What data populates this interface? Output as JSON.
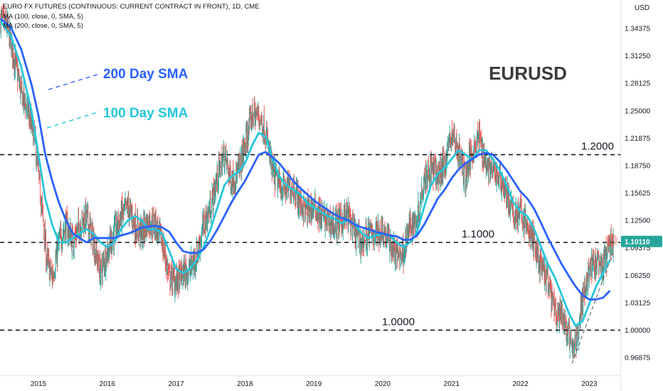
{
  "header": {
    "title": "EURO FX FUTURES (CONTINUOUS: CURRENT CONTRACT IN FRONT), 1D, CME",
    "indicator_1": "MA (100, close, 0, SMA, 5)",
    "indicator_2": "MA (200, close, 0, SMA, 5)"
  },
  "chart_data": {
    "type": "line",
    "title": "EURUSD",
    "currency_label": "USD",
    "x_ticks": [
      "2015",
      "2016",
      "2017",
      "2018",
      "2019",
      "2020",
      "2021",
      "2022",
      "2023"
    ],
    "y_ticks": [
      "1.34375",
      "1.31250",
      "1.28125",
      "1.25000",
      "1.21875",
      "1.18750",
      "1.15625",
      "1.12500",
      "1.09375",
      "1.06250",
      "1.03125",
      "1.00000",
      "0.96875"
    ],
    "ylim": [
      0.955,
      1.36
    ],
    "last_price": "1.10110",
    "colors": {
      "price_up": "#26a69a",
      "price_down": "#ef5350",
      "sma100": "#26c6da",
      "sma200": "#2962ff",
      "text": "#131722",
      "axis_text": "#131722"
    },
    "horizontal_levels": [
      {
        "value": 1.2,
        "label": "1.2000"
      },
      {
        "value": 1.1,
        "label": "1.1000"
      },
      {
        "value": 1.0,
        "label": "1.0000"
      }
    ],
    "annotations": [
      {
        "text": "200 Day SMA",
        "color": "#2962ff"
      },
      {
        "text": "100 Day SMA",
        "color": "#26c6da"
      }
    ],
    "price_path": [
      [
        2014.45,
        1.355
      ],
      [
        2014.55,
        1.345
      ],
      [
        2014.65,
        1.31
      ],
      [
        2014.75,
        1.27
      ],
      [
        2014.85,
        1.25
      ],
      [
        2014.95,
        1.215
      ],
      [
        2015.05,
        1.14
      ],
      [
        2015.12,
        1.08
      ],
      [
        2015.2,
        1.06
      ],
      [
        2015.3,
        1.1
      ],
      [
        2015.4,
        1.12
      ],
      [
        2015.5,
        1.1
      ],
      [
        2015.6,
        1.12
      ],
      [
        2015.7,
        1.13
      ],
      [
        2015.8,
        1.1
      ],
      [
        2015.9,
        1.065
      ],
      [
        2016.0,
        1.09
      ],
      [
        2016.1,
        1.11
      ],
      [
        2016.2,
        1.13
      ],
      [
        2016.3,
        1.14
      ],
      [
        2016.4,
        1.12
      ],
      [
        2016.5,
        1.11
      ],
      [
        2016.6,
        1.125
      ],
      [
        2016.7,
        1.12
      ],
      [
        2016.8,
        1.1
      ],
      [
        2016.9,
        1.06
      ],
      [
        2017.0,
        1.055
      ],
      [
        2017.1,
        1.065
      ],
      [
        2017.2,
        1.07
      ],
      [
        2017.3,
        1.085
      ],
      [
        2017.4,
        1.12
      ],
      [
        2017.5,
        1.14
      ],
      [
        2017.6,
        1.175
      ],
      [
        2017.7,
        1.2
      ],
      [
        2017.8,
        1.17
      ],
      [
        2017.9,
        1.18
      ],
      [
        2018.0,
        1.21
      ],
      [
        2018.1,
        1.245
      ],
      [
        2018.2,
        1.245
      ],
      [
        2018.3,
        1.225
      ],
      [
        2018.4,
        1.18
      ],
      [
        2018.5,
        1.165
      ],
      [
        2018.6,
        1.16
      ],
      [
        2018.7,
        1.165
      ],
      [
        2018.8,
        1.145
      ],
      [
        2018.9,
        1.135
      ],
      [
        2019.0,
        1.14
      ],
      [
        2019.1,
        1.13
      ],
      [
        2019.2,
        1.125
      ],
      [
        2019.3,
        1.12
      ],
      [
        2019.4,
        1.125
      ],
      [
        2019.5,
        1.13
      ],
      [
        2019.6,
        1.11
      ],
      [
        2019.7,
        1.1
      ],
      [
        2019.8,
        1.11
      ],
      [
        2019.9,
        1.11
      ],
      [
        2020.0,
        1.115
      ],
      [
        2020.1,
        1.1
      ],
      [
        2020.2,
        1.085
      ],
      [
        2020.3,
        1.09
      ],
      [
        2020.4,
        1.12
      ],
      [
        2020.5,
        1.125
      ],
      [
        2020.6,
        1.175
      ],
      [
        2020.7,
        1.185
      ],
      [
        2020.8,
        1.175
      ],
      [
        2020.9,
        1.19
      ],
      [
        2021.0,
        1.225
      ],
      [
        2021.1,
        1.205
      ],
      [
        2021.2,
        1.175
      ],
      [
        2021.3,
        1.205
      ],
      [
        2021.4,
        1.22
      ],
      [
        2021.5,
        1.19
      ],
      [
        2021.6,
        1.18
      ],
      [
        2021.7,
        1.175
      ],
      [
        2021.8,
        1.155
      ],
      [
        2021.9,
        1.13
      ],
      [
        2022.0,
        1.135
      ],
      [
        2022.1,
        1.115
      ],
      [
        2022.2,
        1.1
      ],
      [
        2022.3,
        1.07
      ],
      [
        2022.4,
        1.055
      ],
      [
        2022.5,
        1.02
      ],
      [
        2022.6,
        1.015
      ],
      [
        2022.7,
        0.995
      ],
      [
        2022.75,
        0.975
      ],
      [
        2022.8,
        0.985
      ],
      [
        2022.9,
        1.035
      ],
      [
        2023.0,
        1.07
      ],
      [
        2023.1,
        1.075
      ],
      [
        2023.2,
        1.07
      ],
      [
        2023.3,
        1.1
      ],
      [
        2023.35,
        1.101
      ]
    ],
    "sma100_path": [
      [
        2014.45,
        1.352
      ],
      [
        2014.6,
        1.335
      ],
      [
        2014.75,
        1.3
      ],
      [
        2014.9,
        1.25
      ],
      [
        2015.0,
        1.2
      ],
      [
        2015.1,
        1.15
      ],
      [
        2015.2,
        1.12
      ],
      [
        2015.3,
        1.1
      ],
      [
        2015.4,
        1.1
      ],
      [
        2015.5,
        1.105
      ],
      [
        2015.6,
        1.11
      ],
      [
        2015.7,
        1.115
      ],
      [
        2015.8,
        1.11
      ],
      [
        2015.9,
        1.1
      ],
      [
        2016.0,
        1.095
      ],
      [
        2016.1,
        1.1
      ],
      [
        2016.2,
        1.115
      ],
      [
        2016.3,
        1.125
      ],
      [
        2016.4,
        1.13
      ],
      [
        2016.5,
        1.125
      ],
      [
        2016.6,
        1.115
      ],
      [
        2016.7,
        1.115
      ],
      [
        2016.8,
        1.11
      ],
      [
        2016.9,
        1.09
      ],
      [
        2017.0,
        1.07
      ],
      [
        2017.1,
        1.065
      ],
      [
        2017.2,
        1.07
      ],
      [
        2017.3,
        1.08
      ],
      [
        2017.4,
        1.095
      ],
      [
        2017.5,
        1.115
      ],
      [
        2017.6,
        1.14
      ],
      [
        2017.7,
        1.165
      ],
      [
        2017.8,
        1.175
      ],
      [
        2017.9,
        1.18
      ],
      [
        2018.0,
        1.19
      ],
      [
        2018.1,
        1.21
      ],
      [
        2018.2,
        1.225
      ],
      [
        2018.3,
        1.22
      ],
      [
        2018.4,
        1.195
      ],
      [
        2018.5,
        1.175
      ],
      [
        2018.6,
        1.165
      ],
      [
        2018.7,
        1.16
      ],
      [
        2018.8,
        1.155
      ],
      [
        2018.9,
        1.145
      ],
      [
        2019.0,
        1.14
      ],
      [
        2019.1,
        1.135
      ],
      [
        2019.2,
        1.13
      ],
      [
        2019.3,
        1.127
      ],
      [
        2019.4,
        1.122
      ],
      [
        2019.5,
        1.125
      ],
      [
        2019.6,
        1.12
      ],
      [
        2019.7,
        1.11
      ],
      [
        2019.8,
        1.105
      ],
      [
        2019.9,
        1.108
      ],
      [
        2020.0,
        1.11
      ],
      [
        2020.1,
        1.108
      ],
      [
        2020.2,
        1.1
      ],
      [
        2020.3,
        1.095
      ],
      [
        2020.4,
        1.1
      ],
      [
        2020.5,
        1.112
      ],
      [
        2020.6,
        1.14
      ],
      [
        2020.7,
        1.165
      ],
      [
        2020.8,
        1.178
      ],
      [
        2020.9,
        1.185
      ],
      [
        2021.0,
        1.195
      ],
      [
        2021.1,
        1.205
      ],
      [
        2021.2,
        1.2
      ],
      [
        2021.3,
        1.195
      ],
      [
        2021.4,
        1.205
      ],
      [
        2021.5,
        1.205
      ],
      [
        2021.6,
        1.195
      ],
      [
        2021.7,
        1.182
      ],
      [
        2021.8,
        1.165
      ],
      [
        2021.9,
        1.145
      ],
      [
        2022.0,
        1.135
      ],
      [
        2022.1,
        1.13
      ],
      [
        2022.2,
        1.115
      ],
      [
        2022.3,
        1.095
      ],
      [
        2022.4,
        1.075
      ],
      [
        2022.5,
        1.06
      ],
      [
        2022.6,
        1.04
      ],
      [
        2022.7,
        1.02
      ],
      [
        2022.8,
        1.005
      ],
      [
        2022.9,
        1.01
      ],
      [
        2023.0,
        1.03
      ],
      [
        2023.1,
        1.05
      ],
      [
        2023.2,
        1.065
      ],
      [
        2023.3,
        1.08
      ]
    ],
    "sma200_path": [
      [
        2014.45,
        1.355
      ],
      [
        2014.6,
        1.345
      ],
      [
        2014.75,
        1.32
      ],
      [
        2014.9,
        1.28
      ],
      [
        2015.0,
        1.245
      ],
      [
        2015.1,
        1.2
      ],
      [
        2015.2,
        1.17
      ],
      [
        2015.3,
        1.145
      ],
      [
        2015.4,
        1.125
      ],
      [
        2015.5,
        1.11
      ],
      [
        2015.6,
        1.105
      ],
      [
        2015.7,
        1.1
      ],
      [
        2015.8,
        1.105
      ],
      [
        2015.9,
        1.105
      ],
      [
        2016.0,
        1.105
      ],
      [
        2016.1,
        1.105
      ],
      [
        2016.2,
        1.108
      ],
      [
        2016.3,
        1.11
      ],
      [
        2016.4,
        1.113
      ],
      [
        2016.5,
        1.117
      ],
      [
        2016.6,
        1.118
      ],
      [
        2016.7,
        1.119
      ],
      [
        2016.8,
        1.117
      ],
      [
        2016.9,
        1.112
      ],
      [
        2017.0,
        1.1
      ],
      [
        2017.1,
        1.09
      ],
      [
        2017.2,
        1.088
      ],
      [
        2017.3,
        1.088
      ],
      [
        2017.4,
        1.092
      ],
      [
        2017.5,
        1.102
      ],
      [
        2017.6,
        1.115
      ],
      [
        2017.7,
        1.13
      ],
      [
        2017.8,
        1.145
      ],
      [
        2017.9,
        1.158
      ],
      [
        2018.0,
        1.17
      ],
      [
        2018.1,
        1.185
      ],
      [
        2018.2,
        1.2
      ],
      [
        2018.3,
        1.203
      ],
      [
        2018.4,
        1.197
      ],
      [
        2018.5,
        1.19
      ],
      [
        2018.6,
        1.18
      ],
      [
        2018.7,
        1.17
      ],
      [
        2018.8,
        1.162
      ],
      [
        2018.9,
        1.155
      ],
      [
        2019.0,
        1.148
      ],
      [
        2019.1,
        1.142
      ],
      [
        2019.2,
        1.137
      ],
      [
        2019.3,
        1.132
      ],
      [
        2019.4,
        1.128
      ],
      [
        2019.5,
        1.125
      ],
      [
        2019.6,
        1.12
      ],
      [
        2019.7,
        1.117
      ],
      [
        2019.8,
        1.115
      ],
      [
        2019.9,
        1.112
      ],
      [
        2020.0,
        1.11
      ],
      [
        2020.1,
        1.108
      ],
      [
        2020.2,
        1.107
      ],
      [
        2020.3,
        1.103
      ],
      [
        2020.4,
        1.103
      ],
      [
        2020.5,
        1.108
      ],
      [
        2020.6,
        1.12
      ],
      [
        2020.7,
        1.135
      ],
      [
        2020.8,
        1.15
      ],
      [
        2020.9,
        1.16
      ],
      [
        2021.0,
        1.173
      ],
      [
        2021.1,
        1.183
      ],
      [
        2021.2,
        1.19
      ],
      [
        2021.3,
        1.195
      ],
      [
        2021.4,
        1.2
      ],
      [
        2021.5,
        1.202
      ],
      [
        2021.6,
        1.2
      ],
      [
        2021.7,
        1.192
      ],
      [
        2021.8,
        1.182
      ],
      [
        2021.9,
        1.17
      ],
      [
        2022.0,
        1.158
      ],
      [
        2022.1,
        1.15
      ],
      [
        2022.2,
        1.138
      ],
      [
        2022.3,
        1.122
      ],
      [
        2022.4,
        1.105
      ],
      [
        2022.5,
        1.09
      ],
      [
        2022.6,
        1.075
      ],
      [
        2022.7,
        1.062
      ],
      [
        2022.8,
        1.05
      ],
      [
        2022.9,
        1.04
      ],
      [
        2023.0,
        1.035
      ],
      [
        2023.1,
        1.035
      ],
      [
        2023.2,
        1.037
      ],
      [
        2023.3,
        1.045
      ]
    ]
  }
}
